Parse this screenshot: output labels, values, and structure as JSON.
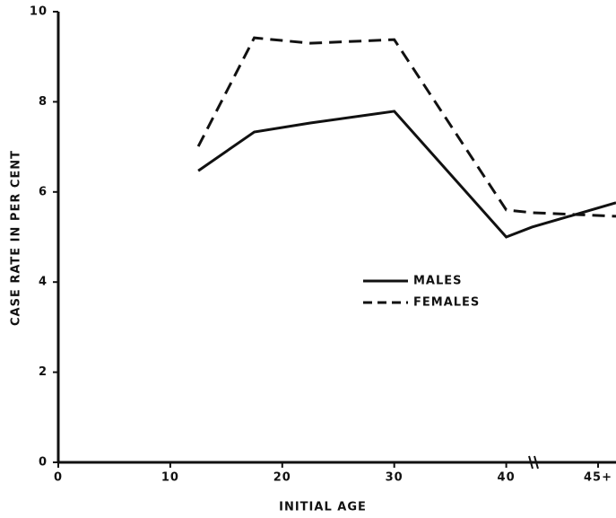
{
  "chart_data": {
    "type": "line",
    "x_label": "INITIAL AGE",
    "y_label": "CASE RATE IN PER CENT",
    "x": [
      12.5,
      17.5,
      22.5,
      30,
      40,
      42.3,
      49.8
    ],
    "series": [
      {
        "name": "MALES",
        "color": "#111111",
        "dash": false,
        "values": [
          6.47,
          7.33,
          7.53,
          7.79,
          5.0,
          5.22,
          5.76
        ]
      },
      {
        "name": "FEMALES",
        "color": "#111111",
        "dash": true,
        "values": [
          7.01,
          9.42,
          9.3,
          9.38,
          5.6,
          5.54,
          5.46
        ]
      }
    ],
    "xlim": [
      0,
      49.8
    ],
    "ylim": [
      0,
      10
    ],
    "xticks": [
      0,
      10,
      20,
      30,
      40,
      {
        "value": 48.2,
        "label": "45+"
      }
    ],
    "yticks": [
      0,
      2,
      4,
      6,
      8,
      10
    ],
    "legend": "center"
  }
}
